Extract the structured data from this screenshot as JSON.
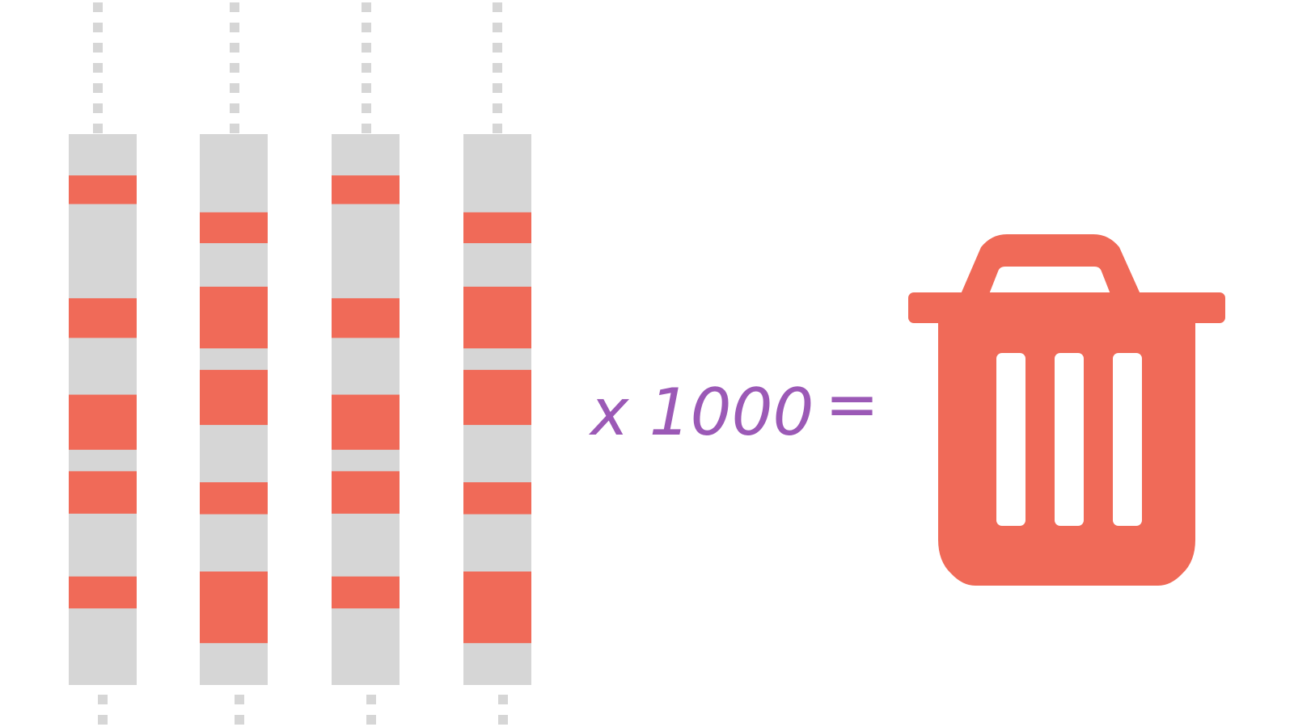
{
  "colors": {
    "background": "#ffffff",
    "strip": "#d6d6d6",
    "highlight": "#f06a58",
    "dash": "#d6d6d6",
    "text": "#9b59b6",
    "bin": "#f06a58"
  },
  "equation": {
    "multiplier": "x 1000",
    "equals": "="
  },
  "result_icon": "trash-bin-icon",
  "strips": [
    {
      "name": "strip-1",
      "bands": [
        [
          0.075,
          0.127
        ],
        [
          0.298,
          0.37
        ],
        [
          0.473,
          0.573
        ],
        [
          0.612,
          0.689
        ],
        [
          0.803,
          0.861
        ]
      ]
    },
    {
      "name": "strip-2",
      "bands": [
        [
          0.142,
          0.198
        ],
        [
          0.277,
          0.389
        ],
        [
          0.428,
          0.528
        ],
        [
          0.632,
          0.69
        ],
        [
          0.794,
          0.924
        ]
      ]
    },
    {
      "name": "strip-3",
      "bands": [
        [
          0.075,
          0.127
        ],
        [
          0.298,
          0.37
        ],
        [
          0.473,
          0.573
        ],
        [
          0.612,
          0.689
        ],
        [
          0.803,
          0.861
        ]
      ]
    },
    {
      "name": "strip-4",
      "bands": [
        [
          0.142,
          0.198
        ],
        [
          0.277,
          0.389
        ],
        [
          0.428,
          0.528
        ],
        [
          0.632,
          0.69
        ],
        [
          0.794,
          0.924
        ]
      ]
    }
  ]
}
